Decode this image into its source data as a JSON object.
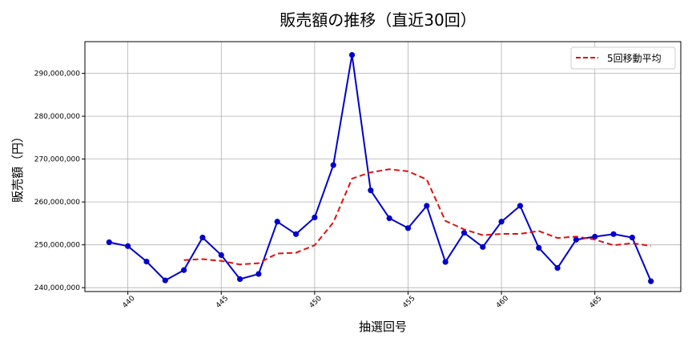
{
  "chart_data": {
    "type": "line",
    "title": "販売額の推移（直近30回）",
    "xlabel": "抽選回号",
    "ylabel": "販売額（円）",
    "x": [
      439,
      440,
      441,
      442,
      443,
      444,
      445,
      446,
      447,
      448,
      449,
      450,
      451,
      452,
      453,
      454,
      455,
      456,
      457,
      458,
      459,
      460,
      461,
      462,
      463,
      464,
      465,
      466,
      467,
      468
    ],
    "series": [
      {
        "name": "販売額",
        "color": "#0000cc",
        "style": "solid-marker",
        "values": [
          250600000,
          249700000,
          246100000,
          241700000,
          244100000,
          251700000,
          247600000,
          242000000,
          243200000,
          255400000,
          252500000,
          256400000,
          268600000,
          294300000,
          262700000,
          256200000,
          253900000,
          259100000,
          246000000,
          252800000,
          249500000,
          255400000,
          259100000,
          249300000,
          244600000,
          251200000,
          251900000,
          252500000,
          251700000,
          241500000
        ]
      },
      {
        "name": "5回移動平均",
        "color": "#dd1111",
        "style": "dashed",
        "values": [
          null,
          null,
          null,
          null,
          246440000,
          246660000,
          246240000,
          245420000,
          245720000,
          247980000,
          248140000,
          249900000,
          255220000,
          265440000,
          266900000,
          267640000,
          267140000,
          265240000,
          255580000,
          253600000,
          252260000,
          252560000,
          252560000,
          253220000,
          251580000,
          251920000,
          251220000,
          249900000,
          250380000,
          249760000
        ]
      }
    ],
    "xticks": [
      440,
      445,
      450,
      455,
      460,
      465
    ],
    "yticks": [
      240000000,
      250000000,
      260000000,
      270000000,
      280000000,
      290000000
    ],
    "ytick_labels": [
      "240,000,000",
      "250,000,000",
      "260,000,000",
      "270,000,000",
      "280,000,000",
      "290,000,000"
    ],
    "xlim": [
      437.7,
      469.6
    ],
    "ylim": [
      239100000,
      297400000
    ],
    "grid": true,
    "legend": {
      "position": "upper right",
      "entries": [
        "5回移動平均"
      ]
    }
  }
}
